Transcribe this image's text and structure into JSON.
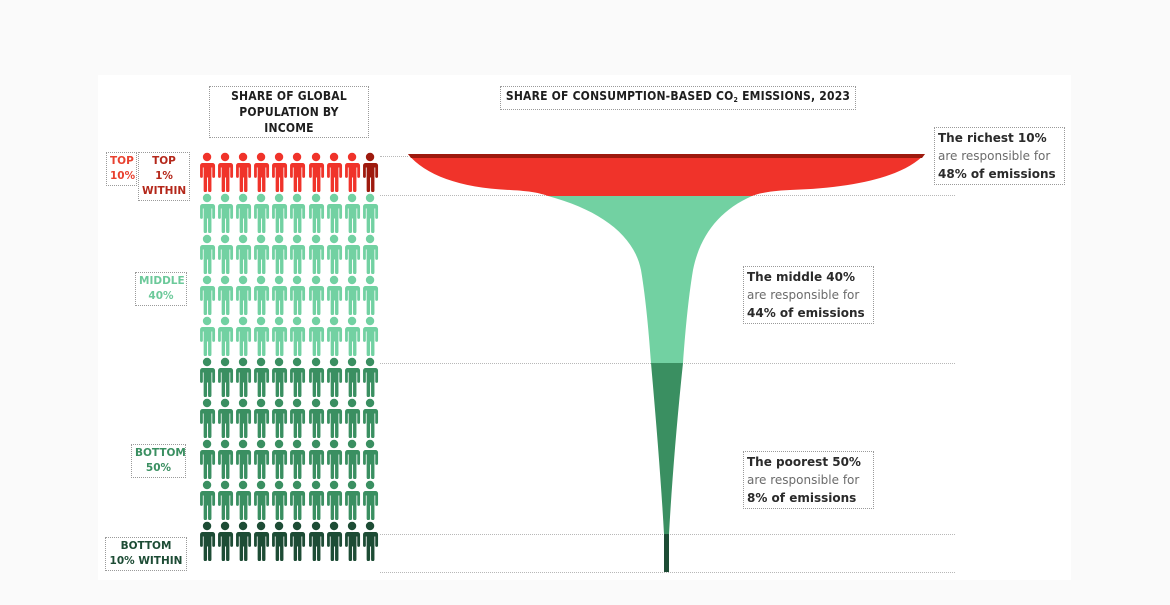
{
  "headers": {
    "population": [
      "SHARE OF GLOBAL",
      "POPULATION BY INCOME"
    ],
    "emissions_prefix": "SHARE OF CONSUMPTION-BASED CO",
    "emissions_sub": "2",
    "emissions_suffix": " EMISSIONS, 2023"
  },
  "group_labels": {
    "top10": [
      "TOP",
      "10%"
    ],
    "top1": [
      "TOP 1%",
      "WITHIN"
    ],
    "middle40": [
      "MIDDLE",
      "40%"
    ],
    "bottom50": [
      "BOTTOM",
      "50%"
    ],
    "bottom10": [
      "BOTTOM",
      "10% WITHIN"
    ]
  },
  "callouts": [
    {
      "line1": "The richest 10%",
      "line2": "are responsible for",
      "line3": "48% of emissions"
    },
    {
      "line1": "The middle 40%",
      "line2": "are responsible for",
      "line3": "44% of emissions"
    },
    {
      "line1": "The poorest 50%",
      "line2": "are responsible for",
      "line3": "8% of emissions"
    }
  ],
  "colors": {
    "top10": "#f0332a",
    "top1": "#9e1a0e",
    "middle40": "#72d1a2",
    "bottom50": "#3a8f61",
    "bottom10": "#1d4c35",
    "text": "#2a2a2a"
  },
  "pictogram": {
    "rows": [
      "top10",
      "middle40",
      "middle40",
      "middle40",
      "middle40",
      "bottom50",
      "bottom50",
      "bottom50",
      "bottom50",
      "bottom10"
    ],
    "per_row": 10,
    "highlight_last_in_first_row": "top1"
  },
  "chart_data": {
    "type": "funnel",
    "title": "SHARE OF CONSUMPTION-BASED CO2 EMISSIONS, 2023",
    "left_panel_title": "SHARE OF GLOBAL POPULATION BY INCOME",
    "categories": [
      "Top 10% (incl. top 1%)",
      "Middle 40%",
      "Bottom 50% (incl. bottom 10%)"
    ],
    "population_share_pct": [
      10,
      40,
      50
    ],
    "emissions_share_pct": [
      48,
      44,
      8
    ],
    "sub_groups": [
      {
        "name": "Top 1% within top 10%",
        "population_share_pct": 1
      },
      {
        "name": "Bottom 10% within bottom 50%",
        "population_share_pct": 10
      }
    ],
    "annotations": [
      "The richest 10% are responsible for 48% of emissions",
      "The middle 40% are responsible for 44% of emissions",
      "The poorest 50% are responsible for 8% of emissions"
    ]
  }
}
